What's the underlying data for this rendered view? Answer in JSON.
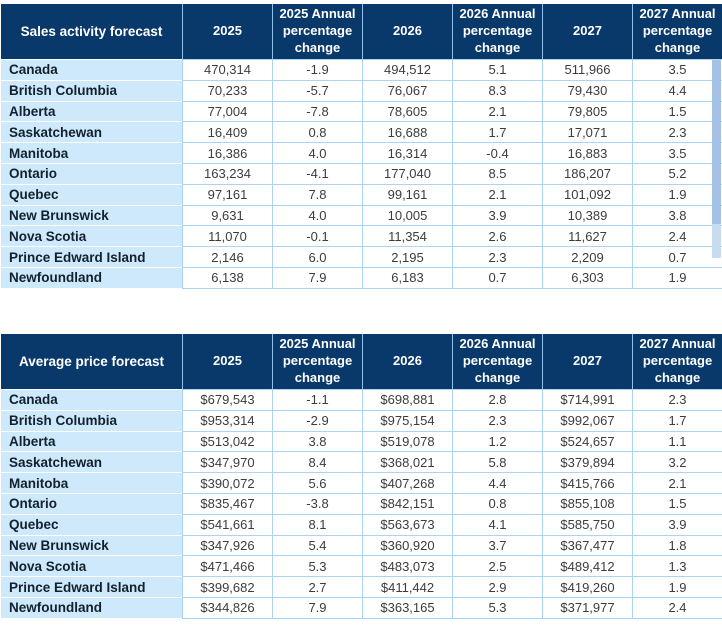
{
  "colors": {
    "header_bg": "#09396b",
    "header_text": "#ffffff",
    "header_divider": "#8fc0ea",
    "row_label_bg": "#cde9fb",
    "row_label_text": "#13202e",
    "grid_line": "#a9d4f2",
    "value_text": "#3c3c3c",
    "scrollbar_track": "#c7dcf1",
    "scrollbar_thumb": "#a3c2e5"
  },
  "scrollbar": {
    "track_color": "#c7dcf1",
    "thumb_color": "#a3c2e5"
  },
  "chart_data": [
    {
      "type": "table",
      "title": "Sales activity forecast",
      "columns": [
        "Sales activity forecast",
        "2025",
        "2025 Annual percentage change",
        "2026",
        "2026 Annual percentage change",
        "2027",
        "2027 Annual percentage change"
      ],
      "rows": [
        [
          "Canada",
          "470,314",
          "-1.9",
          "494,512",
          "5.1",
          "511,966",
          "3.5"
        ],
        [
          "British Columbia",
          "70,233",
          "-5.7",
          "76,067",
          "8.3",
          "79,430",
          "4.4"
        ],
        [
          "Alberta",
          "77,004",
          "-7.8",
          "78,605",
          "2.1",
          "79,805",
          "1.5"
        ],
        [
          "Saskatchewan",
          "16,409",
          "0.8",
          "16,688",
          "1.7",
          "17,071",
          "2.3"
        ],
        [
          "Manitoba",
          "16,386",
          "4.0",
          "16,314",
          "-0.4",
          "16,883",
          "3.5"
        ],
        [
          "Ontario",
          "163,234",
          "-4.1",
          "177,040",
          "8.5",
          "186,207",
          "5.2"
        ],
        [
          "Quebec",
          "97,161",
          "7.8",
          "99,161",
          "2.1",
          "101,092",
          "1.9"
        ],
        [
          "New Brunswick",
          "9,631",
          "4.0",
          "10,005",
          "3.9",
          "10,389",
          "3.8"
        ],
        [
          "Nova Scotia",
          "11,070",
          "-0.1",
          "11,354",
          "2.6",
          "11,627",
          "2.4"
        ],
        [
          "Prince Edward Island",
          "2,146",
          "6.0",
          "2,195",
          "2.3",
          "2,209",
          "0.7"
        ],
        [
          "Newfoundland",
          "6,138",
          "7.9",
          "6,183",
          "0.7",
          "6,303",
          "1.9"
        ]
      ]
    },
    {
      "type": "table",
      "title": "Average price forecast",
      "columns": [
        "Average price forecast",
        "2025",
        "2025 Annual percentage change",
        "2026",
        "2026 Annual percentage change",
        "2027",
        "2027 Annual percentage change"
      ],
      "rows": [
        [
          "Canada",
          "$679,543",
          "-1.1",
          "$698,881",
          "2.8",
          "$714,991",
          "2.3"
        ],
        [
          "British Columbia",
          "$953,314",
          "-2.9",
          "$975,154",
          "2.3",
          "$992,067",
          "1.7"
        ],
        [
          "Alberta",
          "$513,042",
          "3.8",
          "$519,078",
          "1.2",
          "$524,657",
          "1.1"
        ],
        [
          "Saskatchewan",
          "$347,970",
          "8.4",
          "$368,021",
          "5.8",
          "$379,894",
          "3.2"
        ],
        [
          "Manitoba",
          "$390,072",
          "5.6",
          "$407,268",
          "4.4",
          "$415,766",
          "2.1"
        ],
        [
          "Ontario",
          "$835,467",
          "-3.8",
          "$842,151",
          "0.8",
          "$855,108",
          "1.5"
        ],
        [
          "Quebec",
          "$541,661",
          "8.1",
          "$563,673",
          "4.1",
          "$585,750",
          "3.9"
        ],
        [
          "New Brunswick",
          "$347,926",
          "5.4",
          "$360,920",
          "3.7",
          "$367,477",
          "1.8"
        ],
        [
          "Nova Scotia",
          "$471,466",
          "5.3",
          "$483,073",
          "2.5",
          "$489,412",
          "1.3"
        ],
        [
          "Prince Edward Island",
          "$399,682",
          "2.7",
          "$411,442",
          "2.9",
          "$419,260",
          "1.9"
        ],
        [
          "Newfoundland",
          "$344,826",
          "7.9",
          "$363,165",
          "5.3",
          "$371,977",
          "2.4"
        ]
      ]
    }
  ]
}
